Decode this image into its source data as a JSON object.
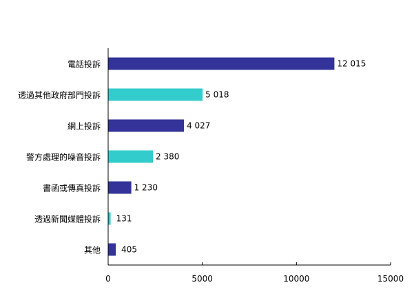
{
  "chart_data": {
    "type": "bar",
    "orientation": "horizontal",
    "categories": [
      "電話投訴",
      "透過其他政府部門投訴",
      "網上投訴",
      "警方處理的噪音投訴",
      "書函或傳真投訴",
      "透過新聞媒體投訴",
      "其他"
    ],
    "values": [
      12015,
      5018,
      4027,
      2380,
      1230,
      131,
      405
    ],
    "value_labels": [
      "12 015",
      "5 018",
      "4 027",
      "2 380",
      "1 230",
      "131",
      "405"
    ],
    "bar_colors": [
      "#333399",
      "#33CCCC",
      "#333399",
      "#33CCCC",
      "#333399",
      "#33CCCC",
      "#333399"
    ],
    "xlim": [
      0,
      15000
    ],
    "xticks": [
      0,
      5000,
      10000,
      15000
    ],
    "xtick_labels": [
      "0",
      "5000",
      "10000",
      "15000"
    ],
    "grid": false,
    "legend": "none"
  }
}
